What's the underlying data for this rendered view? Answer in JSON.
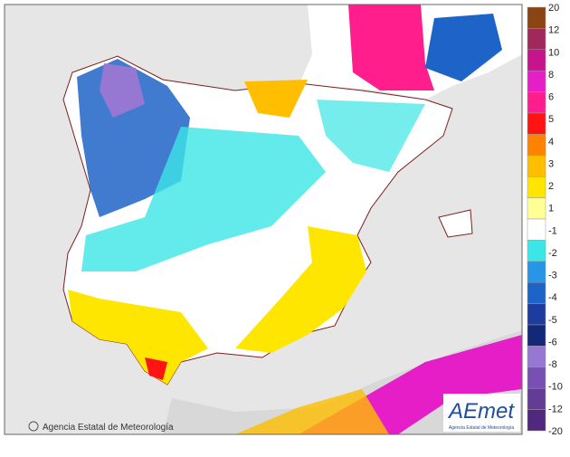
{
  "legend": {
    "labels": [
      "20",
      "12",
      "10",
      "8",
      "6",
      "5",
      "4",
      "3",
      "2",
      "1",
      "-1",
      "-2",
      "-3",
      "-4",
      "-5",
      "-6",
      "-8",
      "-10",
      "-12",
      "-20"
    ],
    "colors": [
      "#8b4513",
      "#a0285a",
      "#c8148c",
      "#e61ec8",
      "#ff1e8c",
      "#ff1414",
      "#ff8200",
      "#ffbe00",
      "#ffe600",
      "#ffff96",
      "#ffffff",
      "#3ce6e6",
      "#2896e6",
      "#1e64c8",
      "#1e3ca0",
      "#142878",
      "#9678d2",
      "#7850b4",
      "#643c96",
      "#50287d"
    ]
  },
  "credit": "Agencia Estatal de Meteorología",
  "logo": {
    "name": "AEmet",
    "caption": "Agencia Estatal de Meteorología"
  }
}
